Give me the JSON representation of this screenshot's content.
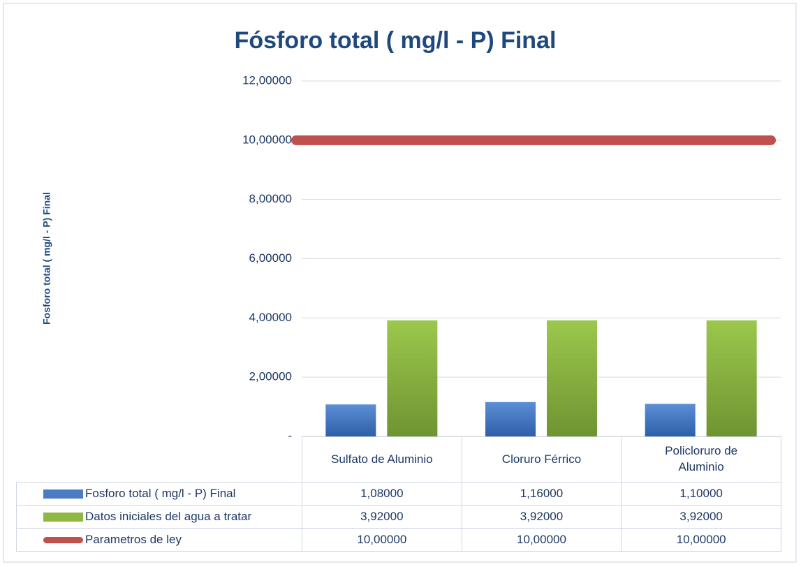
{
  "chart_data": {
    "type": "bar",
    "title": "Fósforo total ( mg/l - P) Final",
    "ylabel": "Fosforo total ( mg/l - P) Final",
    "categories": [
      "Sulfato de Aluminio",
      "Cloruro Férrico",
      "Policloruro de Aluminio"
    ],
    "series": [
      {
        "name": "Fosforo total ( mg/l - P) Final",
        "type": "bar",
        "color": "#4a7cc4",
        "values": [
          1.08,
          1.16,
          1.1
        ],
        "value_labels": [
          "1,08000",
          "1,16000",
          "1,10000"
        ]
      },
      {
        "name": "Datos iniciales del agua a tratar",
        "type": "bar",
        "color": "#8fb843",
        "values": [
          3.92,
          3.92,
          3.92
        ],
        "value_labels": [
          "3,92000",
          "3,92000",
          "3,92000"
        ]
      },
      {
        "name": "Parametros de ley",
        "type": "line",
        "color": "#c0504d",
        "values": [
          10,
          10,
          10
        ],
        "value_labels": [
          "10,00000",
          "10,00000",
          "10,00000"
        ]
      }
    ],
    "ylim": [
      0,
      12
    ],
    "yticks": [
      {
        "value": 0,
        "label": "-"
      },
      {
        "value": 2,
        "label": "2,00000"
      },
      {
        "value": 4,
        "label": "4,00000"
      },
      {
        "value": 6,
        "label": "6,00000"
      },
      {
        "value": 8,
        "label": "8,00000"
      },
      {
        "value": 10,
        "label": "10,00000"
      },
      {
        "value": 12,
        "label": "12,00000"
      }
    ],
    "grid": true
  }
}
